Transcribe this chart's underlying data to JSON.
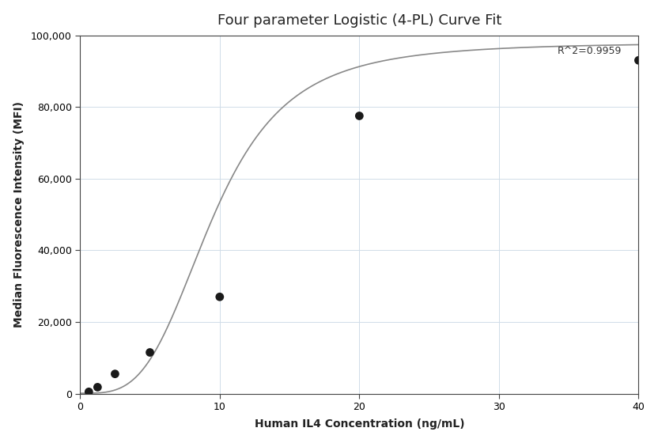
{
  "title": "Four parameter Logistic (4-PL) Curve Fit",
  "xlabel": "Human IL4 Concentration (ng/mL)",
  "ylabel": "Median Fluorescence Intensity (MFI)",
  "r_squared": "R^2=0.9959",
  "scatter_x": [
    0.625,
    1.25,
    2.5,
    5.0,
    10.0,
    20.0,
    40.0
  ],
  "scatter_y": [
    500,
    1800,
    5500,
    11500,
    27000,
    77500,
    93000
  ],
  "xlim": [
    0,
    40
  ],
  "ylim": [
    0,
    100000
  ],
  "yticks": [
    0,
    20000,
    40000,
    60000,
    80000,
    100000
  ],
  "xticks": [
    0,
    10,
    20,
    30,
    40
  ],
  "4pl_A": 100,
  "4pl_B": 3.5,
  "4pl_C": 9.5,
  "4pl_D": 98000,
  "dot_color": "#1a1a1a",
  "dot_size": 60,
  "curve_color": "#888888",
  "grid_color": "#d0dce8",
  "bg_color": "#ffffff",
  "plot_bg": "#ffffff",
  "spine_color": "#444444",
  "title_fontsize": 13,
  "label_fontsize": 10,
  "tick_fontsize": 9,
  "annotation_fontsize": 9
}
